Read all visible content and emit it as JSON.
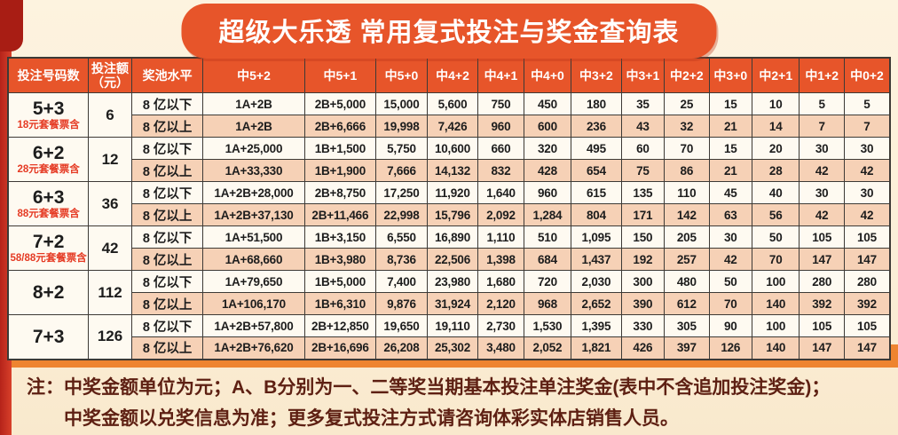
{
  "title": "超级大乐透 常用复式投注与奖金查询表",
  "table": {
    "headers": [
      "投注号码数",
      "投注额\n（元）",
      "奖池水平",
      "中5+2",
      "中5+1",
      "中5+0",
      "中4+2",
      "中4+1",
      "中4+0",
      "中3+2",
      "中3+1",
      "中2+2",
      "中3+0",
      "中2+1",
      "中1+2",
      "中0+2"
    ],
    "pool_levels": [
      "8 亿以下",
      "8 亿以上"
    ],
    "groups": [
      {
        "bet": "5+3",
        "note": "18元套餐票含",
        "amount": "6",
        "rows": [
          {
            "pool": "8 亿以下",
            "values": [
              "1A+2B",
              "2B+5,000",
              "15,000",
              "5,600",
              "750",
              "450",
              "180",
              "35",
              "25",
              "15",
              "10",
              "5",
              "5"
            ]
          },
          {
            "pool": "8 亿以上",
            "values": [
              "1A+2B",
              "2B+6,666",
              "19,998",
              "7,426",
              "960",
              "600",
              "236",
              "43",
              "32",
              "21",
              "14",
              "7",
              "7"
            ]
          }
        ]
      },
      {
        "bet": "6+2",
        "note": "28元套餐票含",
        "amount": "12",
        "rows": [
          {
            "pool": "8 亿以下",
            "values": [
              "1A+25,000",
              "1B+1,500",
              "5,750",
              "10,600",
              "660",
              "320",
              "495",
              "60",
              "70",
              "15",
              "20",
              "30",
              "30"
            ]
          },
          {
            "pool": "8 亿以上",
            "values": [
              "1A+33,330",
              "1B+1,900",
              "7,666",
              "14,132",
              "832",
              "428",
              "654",
              "75",
              "86",
              "21",
              "28",
              "42",
              "42"
            ]
          }
        ]
      },
      {
        "bet": "6+3",
        "note": "88元套餐票含",
        "amount": "36",
        "rows": [
          {
            "pool": "8 亿以下",
            "values": [
              "1A+2B+28,000",
              "2B+8,750",
              "17,250",
              "11,920",
              "1,640",
              "960",
              "615",
              "135",
              "110",
              "45",
              "40",
              "30",
              "30"
            ]
          },
          {
            "pool": "8 亿以上",
            "values": [
              "1A+2B+37,130",
              "2B+11,466",
              "22,998",
              "15,796",
              "2,092",
              "1,284",
              "804",
              "171",
              "142",
              "63",
              "56",
              "42",
              "42"
            ]
          }
        ]
      },
      {
        "bet": "7+2",
        "note": "58/88元套餐票含",
        "amount": "42",
        "rows": [
          {
            "pool": "8 亿以下",
            "values": [
              "1A+51,500",
              "1B+3,150",
              "6,550",
              "16,890",
              "1,110",
              "510",
              "1,095",
              "150",
              "205",
              "30",
              "50",
              "105",
              "105"
            ]
          },
          {
            "pool": "8 亿以上",
            "values": [
              "1A+68,660",
              "1B+3,980",
              "8,736",
              "22,506",
              "1,398",
              "684",
              "1,437",
              "192",
              "257",
              "42",
              "70",
              "147",
              "147"
            ]
          }
        ]
      },
      {
        "bet": "8+2",
        "note": "",
        "amount": "112",
        "rows": [
          {
            "pool": "8 亿以下",
            "values": [
              "1A+79,650",
              "1B+5,000",
              "7,400",
              "23,980",
              "1,680",
              "720",
              "2,030",
              "300",
              "480",
              "50",
              "100",
              "280",
              "280"
            ]
          },
          {
            "pool": "8 亿以上",
            "values": [
              "1A+106,170",
              "1B+6,310",
              "9,876",
              "31,924",
              "2,120",
              "968",
              "2,652",
              "390",
              "612",
              "70",
              "140",
              "392",
              "392"
            ]
          }
        ]
      },
      {
        "bet": "7+3",
        "note": "",
        "amount": "126",
        "rows": [
          {
            "pool": "8 亿以下",
            "values": [
              "1A+2B+57,800",
              "2B+12,850",
              "19,650",
              "19,110",
              "2,730",
              "1,530",
              "1,395",
              "330",
              "305",
              "90",
              "100",
              "105",
              "105"
            ]
          },
          {
            "pool": "8 亿以上",
            "values": [
              "1A+2B+76,620",
              "2B+16,696",
              "26,208",
              "25,302",
              "3,480",
              "2,052",
              "1,821",
              "426",
              "397",
              "126",
              "140",
              "147",
              "147"
            ]
          }
        ]
      }
    ]
  },
  "note": {
    "prefix": "注：",
    "line1": "中奖金额单位为元；A、B分别为一、二等奖当期基本投注单注奖金(表中不含追加投注奖金)；",
    "line2": "中奖金额以兑奖信息为准；更多复式投注方式请咨询体彩实体店销售人员。"
  },
  "colors": {
    "accent_orange": "#e7552a",
    "ribbon_red": "#c4281e",
    "row_light": "#fefaf1",
    "row_peach": "#f6d1b6",
    "band_orange": "#ee8430",
    "note_text": "#5e2013",
    "red_subnote": "#e53a23"
  }
}
